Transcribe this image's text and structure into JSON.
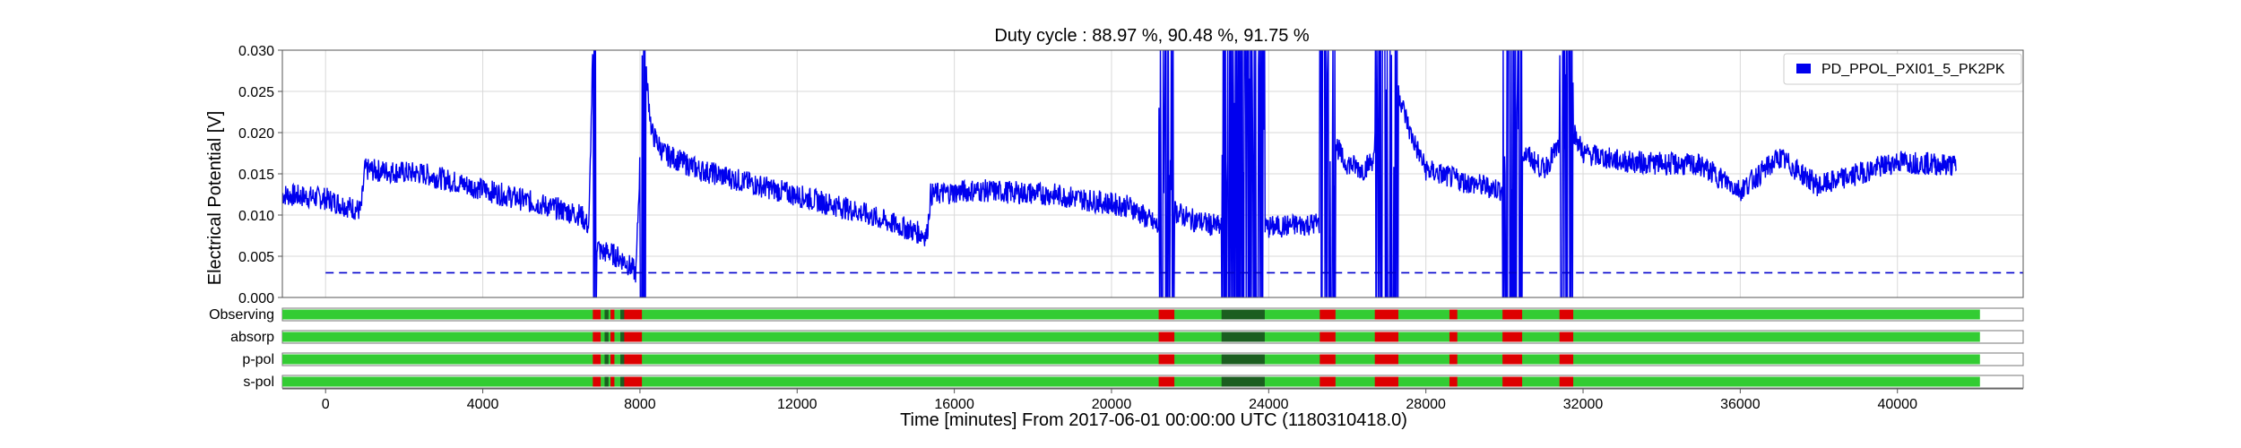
{
  "chart_data": {
    "type": "line",
    "title": "Duty cycle : 88.97 %, 90.48 %, 91.75 %",
    "xlabel": "Time [minutes] From 2017-06-01 00:00:00 UTC (1180310418.0)",
    "ylabel": "Electrical Potential [V]",
    "xlim": [
      -1100,
      43200
    ],
    "ylim": [
      0,
      0.03
    ],
    "grid": true,
    "legend_position": "top-right",
    "x_ticks": [
      0,
      4000,
      8000,
      12000,
      16000,
      20000,
      24000,
      28000,
      32000,
      36000,
      40000
    ],
    "x_tick_labels": [
      "0",
      "4000",
      "8000",
      "12000",
      "16000",
      "20000",
      "24000",
      "28000",
      "32000",
      "36000",
      "40000"
    ],
    "y_ticks": [
      0,
      0.005,
      0.01,
      0.015,
      0.02,
      0.025,
      0.03
    ],
    "y_tick_labels": [
      "0.000",
      "0.005",
      "0.010",
      "0.015",
      "0.020",
      "0.025",
      "0.030"
    ],
    "series": [
      {
        "name": "PD_PPOL_PXI01_5_PK2PK",
        "color": "#0000ee",
        "x": [
          -1100,
          0,
          900,
          1000,
          2500,
          4500,
          6500,
          6700,
          6800,
          6850,
          7000,
          7200,
          7600,
          7900,
          8100,
          8200,
          8300,
          8600,
          9500,
          11500,
          13500,
          15300,
          15400,
          16500,
          18500,
          20500,
          21200,
          21300,
          21600,
          22000,
          22800,
          23900,
          24000,
          25300,
          25400,
          25600,
          25900,
          26400,
          26900,
          27100,
          27300,
          27600,
          28000,
          29000,
          29500,
          30000,
          30500,
          31000,
          31400,
          31600,
          32000,
          33000,
          35000,
          36000,
          37000,
          38000,
          40000,
          41500
        ],
        "y": [
          0.0125,
          0.012,
          0.0105,
          0.0155,
          0.015,
          0.0125,
          0.01,
          0.0085,
          0.03,
          0.007,
          0.0055,
          0.0055,
          0.0045,
          0.003,
          0.03,
          0.025,
          0.02,
          0.0175,
          0.0155,
          0.013,
          0.0105,
          0.0075,
          0.0125,
          0.013,
          0.0125,
          0.011,
          0.0085,
          0.0125,
          0.0105,
          0.0095,
          0.0085,
          0.0085,
          0.0085,
          0.009,
          0.03,
          0.02,
          0.0165,
          0.0155,
          0.018,
          0.0145,
          0.025,
          0.02,
          0.0155,
          0.014,
          0.0135,
          0.013,
          0.0175,
          0.0155,
          0.0185,
          0.022,
          0.0175,
          0.0165,
          0.016,
          0.013,
          0.017,
          0.0135,
          0.0165,
          0.016
        ]
      }
    ],
    "gaps": [
      [
        6800,
        6900
      ],
      [
        8000,
        8150
      ],
      [
        21200,
        21600
      ],
      [
        22800,
        23900
      ],
      [
        25300,
        25700
      ],
      [
        26700,
        27300
      ],
      [
        29950,
        30450
      ],
      [
        31400,
        31750
      ]
    ],
    "threshold": {
      "value": 0.003,
      "color": "#0000cc",
      "style": "dashed",
      "x": [
        0,
        43200
      ]
    },
    "segments": {
      "rows": [
        "Observing",
        "absorp",
        "p-pol",
        "s-pol"
      ],
      "colors": {
        "active": "#33cc33",
        "known": "#1b5e20",
        "inactive": "#dd0000",
        "none": "#ffffff"
      },
      "end_x": 42100,
      "red_intervals": [
        [
          6800,
          7000
        ],
        [
          7250,
          7350
        ],
        [
          7600,
          8050
        ],
        [
          21200,
          21600
        ],
        [
          25300,
          25700
        ],
        [
          26700,
          27300
        ],
        [
          28600,
          28800
        ],
        [
          29950,
          30450
        ],
        [
          31400,
          31750
        ]
      ],
      "dark_intervals": [
        [
          22800,
          23900
        ],
        [
          7100,
          7200
        ],
        [
          7500,
          7700
        ]
      ]
    }
  }
}
